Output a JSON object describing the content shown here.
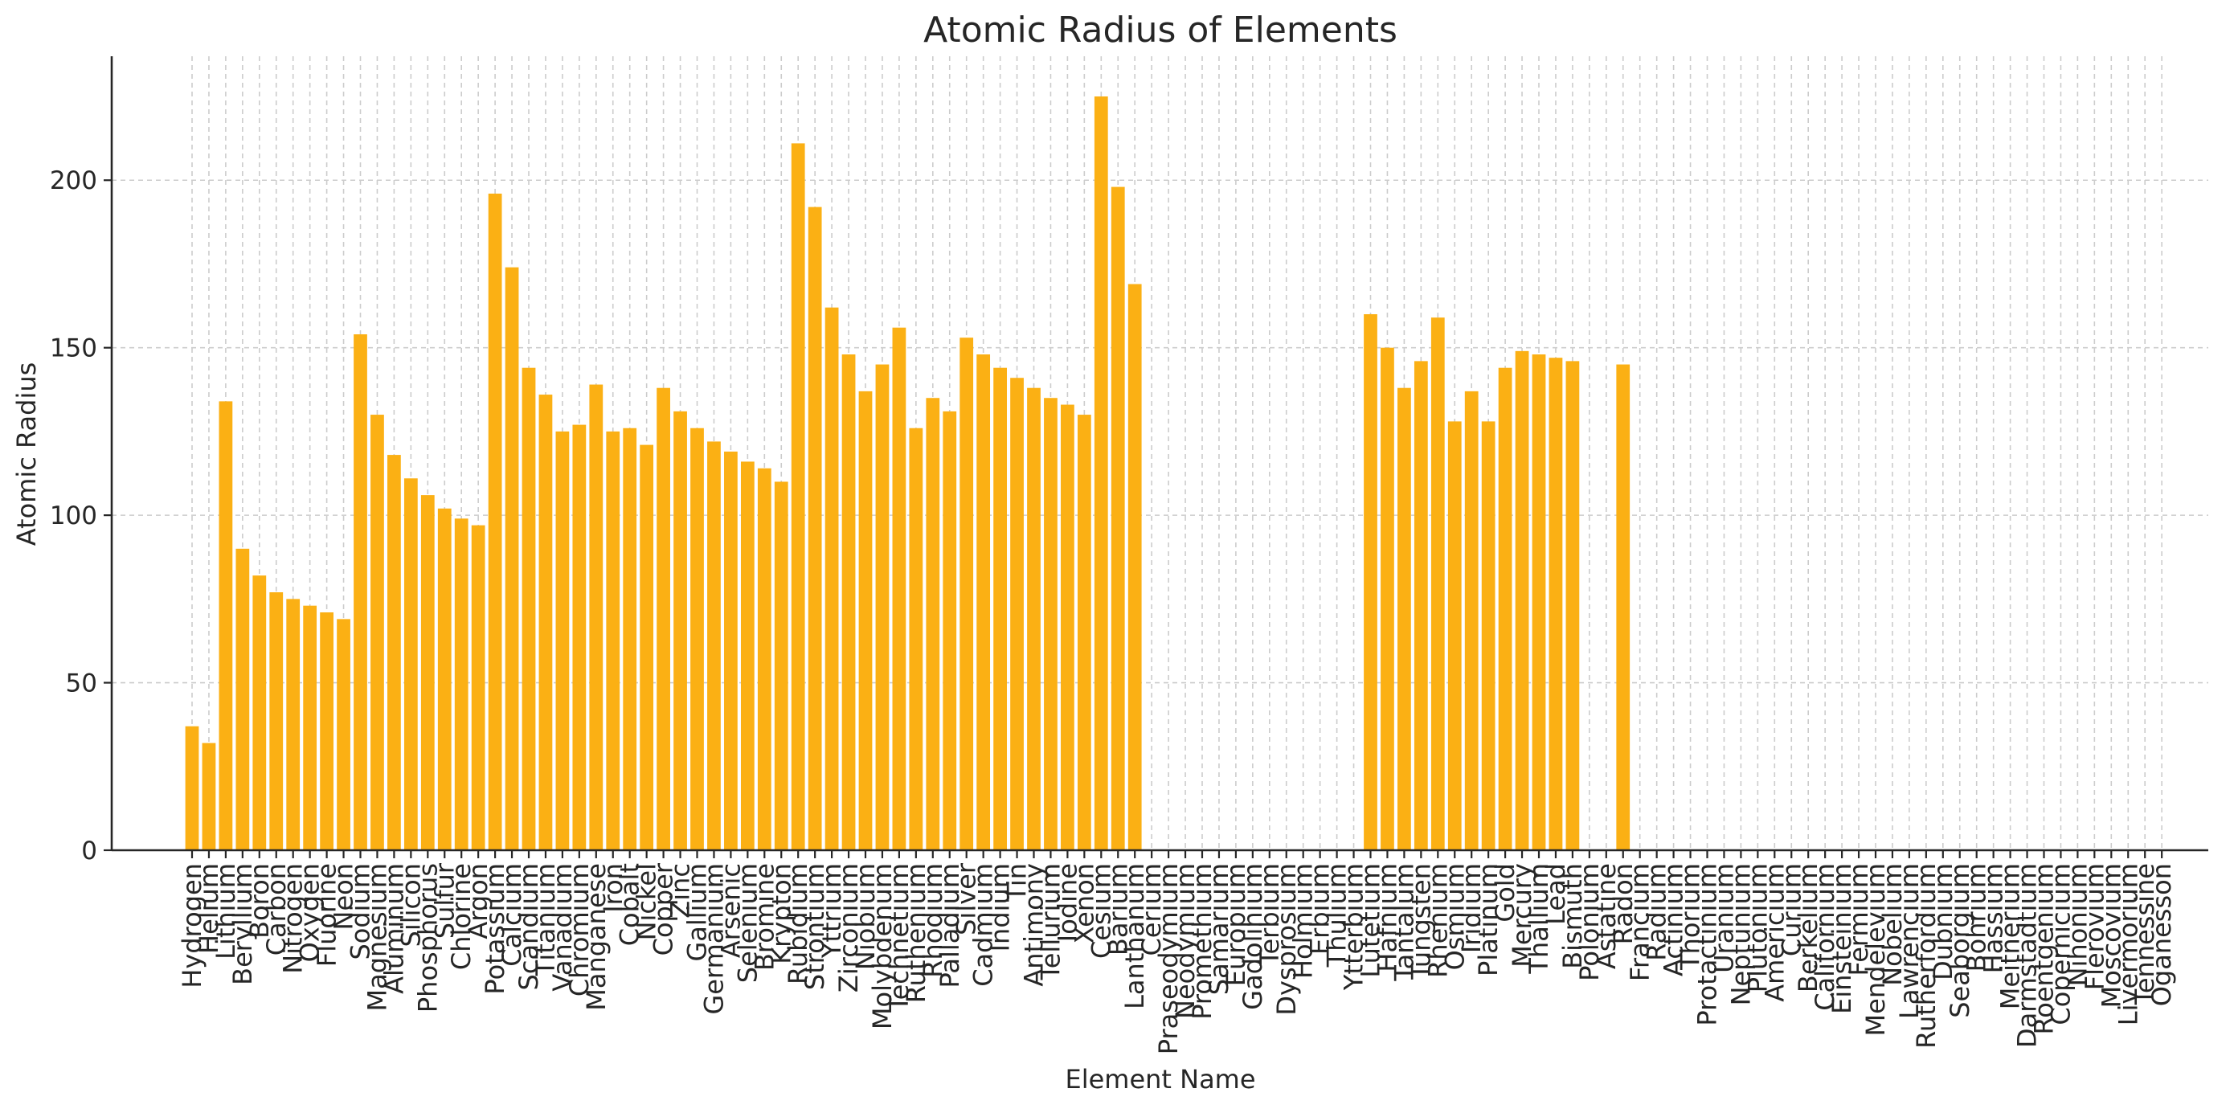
{
  "chart_data": {
    "type": "bar",
    "title": "Atomic Radius of Elements",
    "xlabel": "Element Name",
    "ylabel": "Atomic Radius",
    "ylim": [
      0,
      237
    ],
    "yticks": [
      0,
      50,
      100,
      150,
      200
    ],
    "grid": true,
    "bar_color": "#fbb014",
    "categories": [
      "Hydrogen",
      "Helium",
      "Lithium",
      "Beryllium",
      "Boron",
      "Carbon",
      "Nitrogen",
      "Oxygen",
      "Fluorine",
      "Neon",
      "Sodium",
      "Magnesium",
      "Aluminum",
      "Silicon",
      "Phosphorus",
      "Sulfur",
      "Chlorine",
      "Argon",
      "Potassium",
      "Calcium",
      "Scandium",
      "Titanium",
      "Vanadium",
      "Chromium",
      "Manganese",
      "Iron",
      "Cobalt",
      "Nickel",
      "Copper",
      "Zinc",
      "Gallium",
      "Germanium",
      "Arsenic",
      "Selenium",
      "Bromine",
      "Krypton",
      "Rubidium",
      "Strontium",
      "Yttrium",
      "Zirconium",
      "Niobium",
      "Molybdenum",
      "Technetium",
      "Ruthenium",
      "Rhodium",
      "Palladium",
      "Silver",
      "Cadmium",
      "Indium",
      "Tin",
      "Antimony",
      "Tellurium",
      "Iodine",
      "Xenon",
      "Cesium",
      "Barium",
      "Lanthanum",
      "Cerium",
      "Praseodymium",
      "Neodymium",
      "Promethium",
      "Samarium",
      "Europium",
      "Gadolinium",
      "Terbium",
      "Dysprosium",
      "Holmium",
      "Erbium",
      "Thulium",
      "Ytterbium",
      "Lutetium",
      "Hafnium",
      "Tantalum",
      "Tungsten",
      "Rhenium",
      "Osmium",
      "Iridium",
      "Platinum",
      "Gold",
      "Mercury",
      "Thallium",
      "Lead",
      "Bismuth",
      "Polonium",
      "Astatine",
      "Radon",
      "Francium",
      "Radium",
      "Actinium",
      "Thorium",
      "Protactinium",
      "Uranium",
      "Neptunium",
      "Plutonium",
      "Americium",
      "Curium",
      "Berkelium",
      "Californium",
      "Einsteinium",
      "Fermium",
      "Mendelevium",
      "Nobelium",
      "Lawrencium",
      "Rutherfordium",
      "Dubnium",
      "Seaborgium",
      "Bohrium",
      "Hassium",
      "Meitnerium",
      "Darmstadtium",
      "Roentgenium",
      "Copernicium",
      "Nihonium",
      "Flerovium",
      "Moscovium",
      "Livermorium",
      "Tennessine",
      "Oganesson"
    ],
    "values": [
      37,
      32,
      134,
      90,
      82,
      77,
      75,
      73,
      71,
      69,
      154,
      130,
      118,
      111,
      106,
      102,
      99,
      97,
      196,
      174,
      144,
      136,
      125,
      127,
      139,
      125,
      126,
      121,
      138,
      131,
      126,
      122,
      119,
      116,
      114,
      110,
      211,
      192,
      162,
      148,
      137,
      145,
      156,
      126,
      135,
      131,
      153,
      148,
      144,
      141,
      138,
      135,
      133,
      130,
      225,
      198,
      169,
      null,
      null,
      null,
      null,
      null,
      null,
      null,
      null,
      null,
      null,
      null,
      null,
      null,
      160,
      150,
      138,
      146,
      159,
      128,
      137,
      128,
      144,
      149,
      148,
      147,
      146,
      null,
      null,
      145,
      null,
      null,
      null,
      null,
      null,
      null,
      null,
      null,
      null,
      null,
      null,
      null,
      null,
      null,
      null,
      null,
      null,
      null,
      null,
      null,
      null,
      null,
      null,
      null,
      null,
      null,
      null,
      null,
      null,
      null,
      null,
      null
    ]
  }
}
